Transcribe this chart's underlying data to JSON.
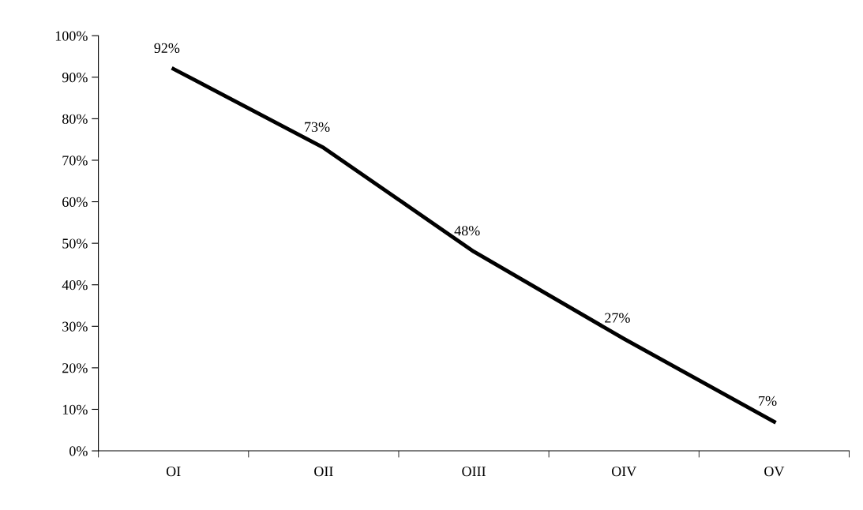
{
  "chart_data": {
    "type": "line",
    "categories": [
      "OI",
      "OII",
      "OIII",
      "OIV",
      "OV"
    ],
    "series": [
      {
        "color": "#000000",
        "values": [
          92,
          73,
          48,
          27,
          7
        ],
        "value_labels": [
          "92%",
          "73%",
          "48%",
          "27%",
          "7%"
        ]
      }
    ],
    "ylim": [
      0,
      100
    ],
    "yticks": [
      {
        "value": 0,
        "label": "0%"
      },
      {
        "value": 10,
        "label": "10%"
      },
      {
        "value": 20,
        "label": "20%"
      },
      {
        "value": 30,
        "label": "30%"
      },
      {
        "value": 40,
        "label": "40%"
      },
      {
        "value": 50,
        "label": "50%"
      },
      {
        "value": 60,
        "label": "60%"
      },
      {
        "value": 70,
        "label": "70%"
      },
      {
        "value": 80,
        "label": "80%"
      },
      {
        "value": 90,
        "label": "90%"
      },
      {
        "value": 100,
        "label": "100%"
      }
    ],
    "grid": false,
    "legend": false,
    "marker": "none",
    "line_style": "solid"
  }
}
